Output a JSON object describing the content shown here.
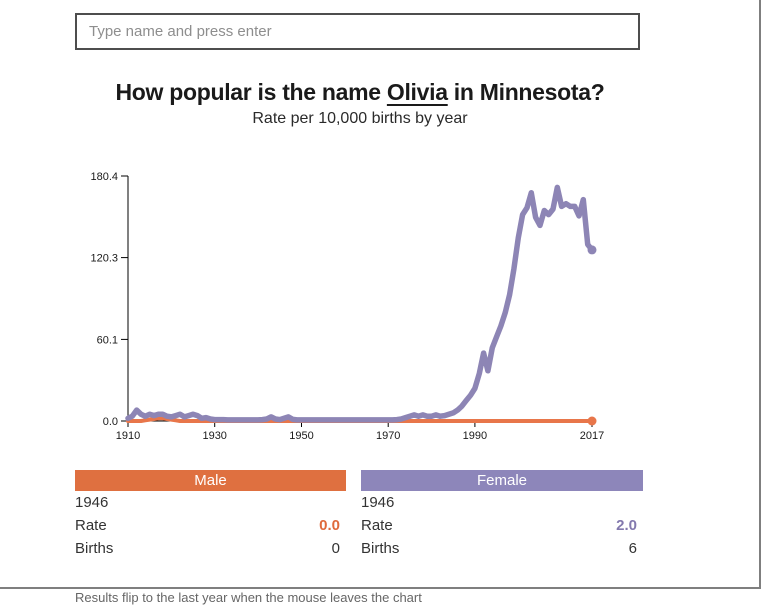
{
  "search": {
    "placeholder": "Type name and press enter"
  },
  "header": {
    "title_prefix": "How popular is the name ",
    "name": "Olivia",
    "title_suffix": " in Minnesota?",
    "subtitle": "Rate per 10,000 births by year"
  },
  "chart_data": {
    "type": "line",
    "title": "How popular is the name Olivia in Minnesota?",
    "ylabel": "Rate per 10,000 births",
    "xlabel": "Year",
    "grid": false,
    "legend": "color-coded panels below chart (Male orange, Female purple)",
    "xlim": [
      1910,
      2017
    ],
    "ylim": [
      0,
      180.4
    ],
    "x_ticks": [
      1910,
      1930,
      1950,
      1970,
      1990,
      2017
    ],
    "y_ticks": [
      0.0,
      60.1,
      120.3,
      180.4
    ],
    "y_tick_labels": [
      "0.0",
      "60.1",
      "120.3",
      "180.4"
    ],
    "x": [
      1910,
      1911,
      1912,
      1913,
      1914,
      1915,
      1916,
      1917,
      1918,
      1919,
      1920,
      1921,
      1922,
      1923,
      1924,
      1925,
      1926,
      1927,
      1928,
      1929,
      1930,
      1931,
      1932,
      1933,
      1934,
      1935,
      1936,
      1937,
      1938,
      1939,
      1940,
      1941,
      1942,
      1943,
      1944,
      1945,
      1946,
      1947,
      1948,
      1949,
      1950,
      1951,
      1952,
      1953,
      1954,
      1955,
      1956,
      1957,
      1958,
      1959,
      1960,
      1961,
      1962,
      1963,
      1964,
      1965,
      1966,
      1967,
      1968,
      1969,
      1970,
      1971,
      1972,
      1973,
      1974,
      1975,
      1976,
      1977,
      1978,
      1979,
      1980,
      1981,
      1982,
      1983,
      1984,
      1985,
      1986,
      1987,
      1988,
      1989,
      1990,
      1991,
      1992,
      1993,
      1994,
      1995,
      1996,
      1997,
      1998,
      1999,
      2000,
      2001,
      2002,
      2003,
      2004,
      2005,
      2006,
      2007,
      2008,
      2009,
      2010,
      2011,
      2012,
      2013,
      2014,
      2015,
      2016,
      2017
    ],
    "series": [
      {
        "name": "Male",
        "color": "#e8764a",
        "values": [
          0,
          0,
          0,
          0,
          0.5,
          1,
          1.5,
          2,
          2,
          1.5,
          1,
          0.5,
          0,
          0,
          0,
          0,
          0,
          0,
          0,
          0,
          0,
          0,
          0,
          0,
          0,
          0,
          0,
          0,
          0,
          0,
          0,
          0,
          0,
          0,
          0,
          0,
          0,
          0,
          0,
          0,
          0,
          0,
          0,
          0,
          0,
          0,
          0,
          0,
          0,
          0,
          0,
          0,
          0,
          0,
          0,
          0,
          0,
          0,
          0,
          0,
          0,
          0,
          0,
          0,
          0,
          0,
          0,
          0,
          0,
          0,
          0,
          0,
          0,
          0,
          0,
          0,
          0,
          0,
          0,
          0,
          0,
          0,
          0,
          0,
          0,
          0,
          0,
          0,
          0,
          0,
          0,
          0,
          0,
          0,
          0,
          0,
          0,
          0,
          0,
          0,
          0,
          0,
          0,
          0,
          0,
          0,
          0,
          0
        ]
      },
      {
        "name": "Female",
        "color": "#8d85b5",
        "values": [
          2,
          3.5,
          8,
          5,
          3.5,
          5,
          4,
          5,
          5,
          3.5,
          3,
          4,
          5,
          3,
          4,
          5,
          4,
          2,
          2.5,
          1.5,
          1,
          1,
          1,
          0.8,
          0.8,
          0.8,
          0.8,
          0.8,
          0.8,
          0.8,
          0.8,
          1,
          1.5,
          3,
          1.5,
          1,
          2,
          3,
          1.2,
          0.8,
          0.8,
          0.8,
          0.8,
          0.8,
          0.8,
          0.8,
          0.8,
          0.8,
          0.8,
          0.8,
          0.8,
          0.8,
          0.8,
          0.8,
          0.8,
          0.8,
          0.8,
          0.8,
          0.8,
          0.8,
          0.8,
          0.8,
          1,
          1.5,
          2.5,
          3.5,
          4.5,
          3.5,
          4.5,
          3.5,
          3.5,
          4.5,
          3.5,
          4,
          5,
          6,
          8,
          11,
          15,
          19,
          24,
          35,
          50,
          37,
          54,
          62,
          70,
          80,
          93,
          112,
          135,
          152,
          157,
          168,
          150,
          144,
          155,
          152,
          156,
          172,
          158,
          160,
          158,
          158,
          151,
          163,
          130,
          126
        ]
      }
    ]
  },
  "cards": {
    "male": {
      "label": "Male",
      "color": "#df7040",
      "year": "1946",
      "rate_label": "Rate",
      "rate": "0.0",
      "births_label": "Births",
      "births": "0"
    },
    "female": {
      "label": "Female",
      "color": "#8d86ba",
      "year": "1946",
      "rate_label": "Rate",
      "rate": "2.0",
      "births_label": "Births",
      "births": "6"
    }
  },
  "footnote": "Results flip to the last year when the mouse leaves the chart"
}
